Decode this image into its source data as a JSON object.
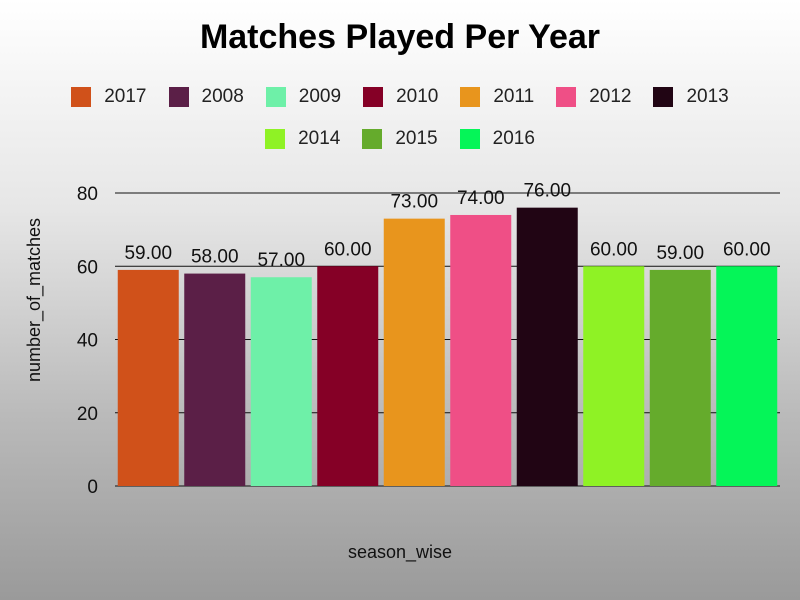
{
  "chart_data": {
    "type": "bar",
    "title": "Matches Played Per Year",
    "xlabel": "season_wise",
    "ylabel": "number_of_matches",
    "categories": [
      "2017",
      "2008",
      "2009",
      "2010",
      "2011",
      "2012",
      "2013",
      "2014",
      "2015",
      "2016"
    ],
    "values": [
      59,
      58,
      57,
      60,
      73,
      74,
      76,
      60,
      59,
      60
    ],
    "data_labels": [
      "59.00",
      "58.00",
      "57.00",
      "60.00",
      "73.00",
      "74.00",
      "76.00",
      "60.00",
      "59.00",
      "60.00"
    ],
    "colors": [
      "#d0511a",
      "#5b1f47",
      "#6ef0a8",
      "#850026",
      "#e8951d",
      "#ef4f86",
      "#210514",
      "#8ff225",
      "#65ab2c",
      "#05f558"
    ],
    "ylim": [
      0,
      80
    ],
    "yticks": [
      0,
      20,
      40,
      60,
      80
    ],
    "grid": true,
    "legend_position": "top",
    "show_x_tick_labels": false
  }
}
